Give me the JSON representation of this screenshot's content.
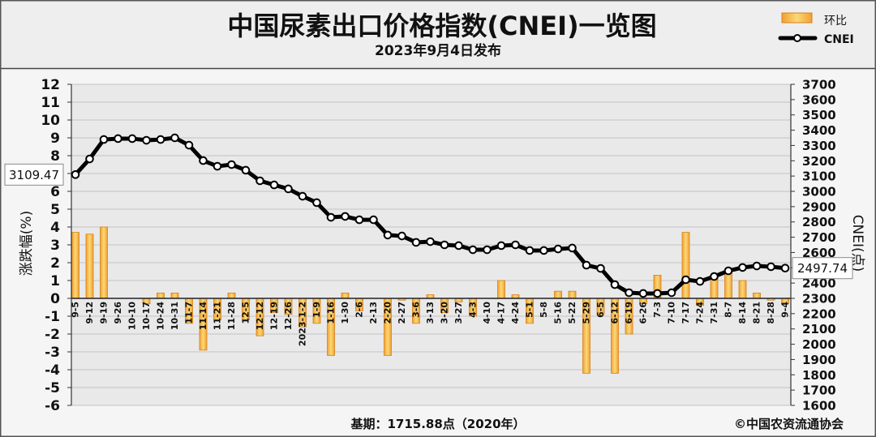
{
  "header": {
    "title": "中国尿素出口价格指数(CNEI)一览图",
    "subtitle": "2023年9月4日发布"
  },
  "footer": {
    "base_period": "基期：1715.88点（2020年）",
    "copyright": "©中国农资流通协会"
  },
  "colors": {
    "bar": "#f0a030",
    "bar_light": "#fbd878",
    "bar_stroke": "#d9801a",
    "line": "#000000",
    "point": "#ffffff",
    "plot_bg": "#e9e9e9"
  },
  "chart_data": {
    "type": "bar",
    "categories": [
      "9-5",
      "9-12",
      "9-19",
      "9-26",
      "10-10",
      "10-17",
      "10-24",
      "10-31",
      "11-7",
      "11-14",
      "11-21",
      "11-28",
      "12-5",
      "12-12",
      "12-19",
      "12-26",
      "2023-1-2",
      "1-9",
      "1-16",
      "1-30",
      "2-6",
      "2-13",
      "2-20",
      "2-27",
      "3-6",
      "3-13",
      "3-20",
      "3-27",
      "4-3",
      "4-10",
      "4-17",
      "4-24",
      "5-1",
      "5-8",
      "5-16",
      "5-22",
      "5-29",
      "6-5",
      "6-12",
      "6-19",
      "6-26",
      "7-3",
      "7-10",
      "7-17",
      "7-24",
      "7-31",
      "8-7",
      "8-14",
      "8-21",
      "8-28",
      "9-4"
    ],
    "series": [
      {
        "name": "环比",
        "type": "bar",
        "yaxis": "left",
        "values": [
          3.7,
          3.6,
          4.0,
          0,
          0,
          -0.3,
          0.3,
          0.3,
          -1.4,
          -2.9,
          -1.2,
          0.3,
          -1.2,
          -2.1,
          -0.8,
          -0.9,
          -1.6,
          -1.4,
          -3.2,
          0.3,
          -0.7,
          0,
          -3.2,
          -0.1,
          -1.4,
          0.2,
          -0.8,
          -0.2,
          -1.0,
          0,
          1.0,
          0.2,
          -1.4,
          0,
          0.4,
          0.4,
          -4.2,
          -0.9,
          -4.2,
          -2.0,
          -0.3,
          1.3,
          0,
          3.7,
          -0.4,
          1.2,
          1.5,
          1.0,
          0.3,
          -0.1,
          -0.3
        ]
      },
      {
        "name": "CNEI",
        "type": "line",
        "yaxis": "right",
        "values": [
          3109.47,
          3212,
          3339,
          3345,
          3345,
          3334,
          3339,
          3350,
          3302,
          3201,
          3164,
          3175,
          3138,
          3069,
          3042,
          3016,
          2968,
          2926,
          2830,
          2836,
          2814,
          2814,
          2714,
          2708,
          2666,
          2671,
          2650,
          2645,
          2618,
          2618,
          2645,
          2650,
          2613,
          2613,
          2623,
          2629,
          2517,
          2496,
          2390,
          2337,
          2332,
          2332,
          2337,
          2422,
          2411,
          2443,
          2480,
          2502,
          2512,
          2507,
          2497.74
        ]
      }
    ],
    "ylabel": "涨跌幅(%)",
    "ylim": [
      -6,
      12
    ],
    "yticks": [
      12,
      11,
      10,
      9,
      8,
      7,
      6,
      5,
      4,
      3,
      2,
      1,
      0,
      -1,
      -2,
      -3,
      -4,
      -5,
      -6
    ],
    "y2label": "CNEI(点)",
    "y2lim": [
      1600,
      3700
    ],
    "y2ticks": [
      3700,
      3600,
      3500,
      3400,
      3300,
      3200,
      3100,
      3000,
      2900,
      2800,
      2700,
      2600,
      2500,
      2400,
      2300,
      2200,
      2100,
      2000,
      1900,
      1800,
      1700,
      1600
    ],
    "annotations": [
      {
        "category": "9-5",
        "series": "CNEI",
        "text": "3109.47"
      },
      {
        "category": "9-4",
        "series": "CNEI",
        "text": "2497.74"
      }
    ],
    "legend_position": "top-right",
    "grid": true
  }
}
